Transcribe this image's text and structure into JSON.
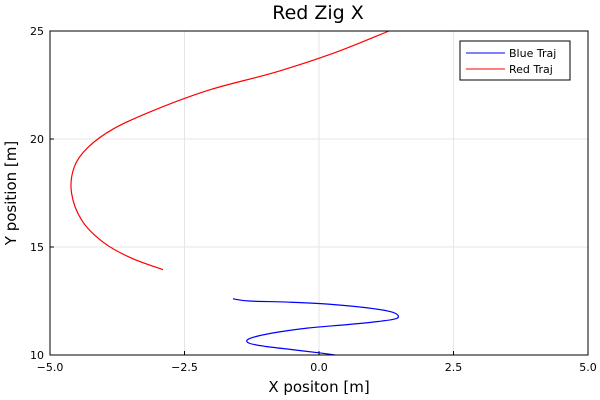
{
  "chart_data": {
    "type": "line",
    "title": "Red Zig X",
    "xlabel": "X positon [m]",
    "ylabel": "Y position [m]",
    "xlim": [
      -5.0,
      5.0
    ],
    "ylim": [
      10,
      25
    ],
    "xticks": [
      -5.0,
      -2.5,
      0.0,
      2.5,
      5.0
    ],
    "xtick_labels": [
      "−5.0",
      "−2.5",
      "0.0",
      "2.5",
      "5.0"
    ],
    "yticks": [
      10,
      15,
      20,
      25
    ],
    "ytick_labels": [
      "10",
      "15",
      "20",
      "25"
    ],
    "grid": true,
    "legend_position": "top-right",
    "series": [
      {
        "name": "Blue Traj",
        "color": "#0000ff",
        "x": [
          0.3,
          0.0,
          -0.5,
          -1.0,
          -1.3,
          -1.3,
          -0.9,
          -0.2,
          0.5,
          1.1,
          1.45,
          1.4,
          1.0,
          0.2,
          -0.6,
          -1.3,
          -1.6
        ],
        "y": [
          10.0,
          10.1,
          10.25,
          10.4,
          10.55,
          10.75,
          11.0,
          11.25,
          11.4,
          11.55,
          11.7,
          11.95,
          12.15,
          12.35,
          12.45,
          12.5,
          12.6
        ]
      },
      {
        "name": "Red Traj",
        "color": "#ff0000",
        "x": [
          -2.9,
          -3.5,
          -4.0,
          -4.4,
          -4.6,
          -4.55,
          -4.3,
          -3.8,
          -3.0,
          -2.0,
          -0.8,
          0.3,
          1.3
        ],
        "y": [
          13.95,
          14.5,
          15.2,
          16.2,
          17.5,
          18.7,
          19.6,
          20.5,
          21.4,
          22.3,
          23.1,
          24.0,
          25.0
        ]
      }
    ]
  }
}
